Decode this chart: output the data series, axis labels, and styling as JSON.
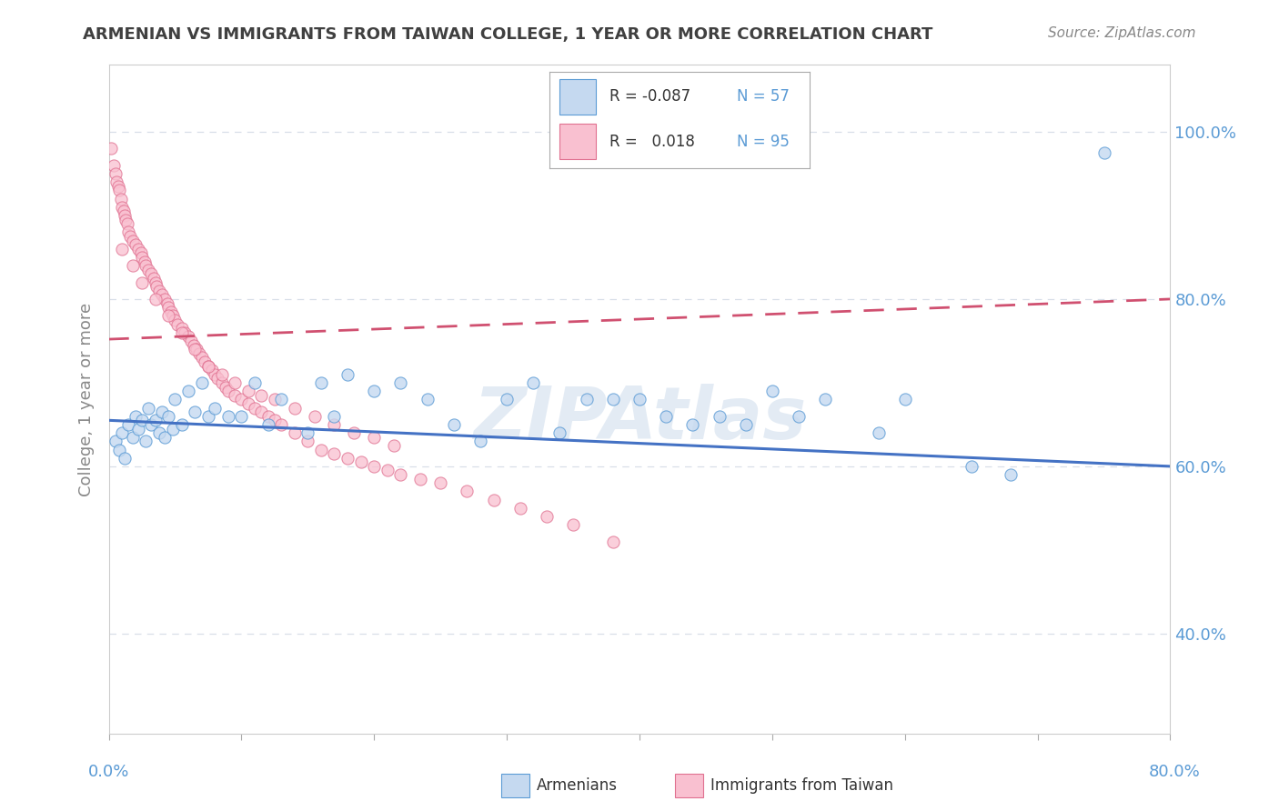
{
  "title": "ARMENIAN VS IMMIGRANTS FROM TAIWAN COLLEGE, 1 YEAR OR MORE CORRELATION CHART",
  "source": "Source: ZipAtlas.com",
  "ylabel": "College, 1 year or more",
  "ytick_vals": [
    0.4,
    0.6,
    0.8,
    1.0
  ],
  "xlim": [
    0.0,
    0.8
  ],
  "ylim": [
    0.28,
    1.08
  ],
  "color_armenian_fill": "#c5d9f0",
  "color_armenian_edge": "#5b9bd5",
  "color_taiwan_fill": "#f9c0d0",
  "color_taiwan_edge": "#e07090",
  "color_line_armenian": "#4472c4",
  "color_line_taiwan": "#d05070",
  "color_title": "#404040",
  "color_source": "#888888",
  "color_axis_label": "#888888",
  "color_tick_right": "#5b9bd5",
  "color_grid": "#d8dfe8",
  "watermark": "ZIPAtlas",
  "arm_trend_x0": 0.0,
  "arm_trend_y0": 0.655,
  "arm_trend_x1": 0.8,
  "arm_trend_y1": 0.6,
  "tw_trend_x0": 0.0,
  "tw_trend_y0": 0.752,
  "tw_trend_x1": 0.8,
  "tw_trend_y1": 0.8,
  "arm_x": [
    0.005,
    0.008,
    0.01,
    0.012,
    0.015,
    0.018,
    0.02,
    0.022,
    0.025,
    0.028,
    0.03,
    0.032,
    0.035,
    0.038,
    0.04,
    0.042,
    0.045,
    0.048,
    0.05,
    0.055,
    0.06,
    0.065,
    0.07,
    0.075,
    0.08,
    0.09,
    0.1,
    0.11,
    0.12,
    0.13,
    0.15,
    0.16,
    0.17,
    0.18,
    0.2,
    0.22,
    0.24,
    0.26,
    0.28,
    0.3,
    0.32,
    0.34,
    0.36,
    0.38,
    0.4,
    0.42,
    0.44,
    0.46,
    0.48,
    0.5,
    0.52,
    0.54,
    0.58,
    0.6,
    0.65,
    0.68,
    0.75
  ],
  "arm_y": [
    0.63,
    0.62,
    0.64,
    0.61,
    0.65,
    0.635,
    0.66,
    0.645,
    0.655,
    0.63,
    0.67,
    0.65,
    0.655,
    0.64,
    0.665,
    0.635,
    0.66,
    0.645,
    0.68,
    0.65,
    0.69,
    0.665,
    0.7,
    0.66,
    0.67,
    0.66,
    0.66,
    0.7,
    0.65,
    0.68,
    0.64,
    0.7,
    0.66,
    0.71,
    0.69,
    0.7,
    0.68,
    0.65,
    0.63,
    0.68,
    0.7,
    0.64,
    0.68,
    0.68,
    0.68,
    0.66,
    0.65,
    0.66,
    0.65,
    0.69,
    0.66,
    0.68,
    0.64,
    0.68,
    0.6,
    0.59,
    0.975
  ],
  "tw_x": [
    0.002,
    0.004,
    0.005,
    0.006,
    0.007,
    0.008,
    0.009,
    0.01,
    0.011,
    0.012,
    0.013,
    0.014,
    0.015,
    0.016,
    0.018,
    0.02,
    0.022,
    0.024,
    0.025,
    0.027,
    0.028,
    0.03,
    0.032,
    0.034,
    0.035,
    0.036,
    0.038,
    0.04,
    0.042,
    0.044,
    0.045,
    0.047,
    0.048,
    0.05,
    0.052,
    0.055,
    0.057,
    0.06,
    0.062,
    0.064,
    0.066,
    0.068,
    0.07,
    0.072,
    0.075,
    0.078,
    0.08,
    0.082,
    0.085,
    0.088,
    0.09,
    0.095,
    0.1,
    0.105,
    0.11,
    0.115,
    0.12,
    0.125,
    0.13,
    0.14,
    0.15,
    0.16,
    0.17,
    0.18,
    0.19,
    0.2,
    0.21,
    0.22,
    0.235,
    0.25,
    0.27,
    0.29,
    0.31,
    0.33,
    0.35,
    0.38,
    0.01,
    0.018,
    0.025,
    0.035,
    0.045,
    0.055,
    0.065,
    0.075,
    0.085,
    0.095,
    0.105,
    0.115,
    0.125,
    0.14,
    0.155,
    0.17,
    0.185,
    0.2,
    0.215
  ],
  "tw_y": [
    0.98,
    0.96,
    0.95,
    0.94,
    0.935,
    0.93,
    0.92,
    0.91,
    0.905,
    0.9,
    0.895,
    0.89,
    0.88,
    0.875,
    0.87,
    0.865,
    0.86,
    0.855,
    0.85,
    0.845,
    0.84,
    0.835,
    0.83,
    0.825,
    0.82,
    0.815,
    0.81,
    0.805,
    0.8,
    0.795,
    0.79,
    0.785,
    0.78,
    0.775,
    0.77,
    0.765,
    0.76,
    0.755,
    0.75,
    0.745,
    0.74,
    0.735,
    0.73,
    0.725,
    0.72,
    0.715,
    0.71,
    0.705,
    0.7,
    0.695,
    0.69,
    0.685,
    0.68,
    0.675,
    0.67,
    0.665,
    0.66,
    0.655,
    0.65,
    0.64,
    0.63,
    0.62,
    0.615,
    0.61,
    0.605,
    0.6,
    0.595,
    0.59,
    0.585,
    0.58,
    0.57,
    0.56,
    0.55,
    0.54,
    0.53,
    0.51,
    0.86,
    0.84,
    0.82,
    0.8,
    0.78,
    0.76,
    0.74,
    0.72,
    0.71,
    0.7,
    0.69,
    0.685,
    0.68,
    0.67,
    0.66,
    0.65,
    0.64,
    0.635,
    0.625
  ]
}
